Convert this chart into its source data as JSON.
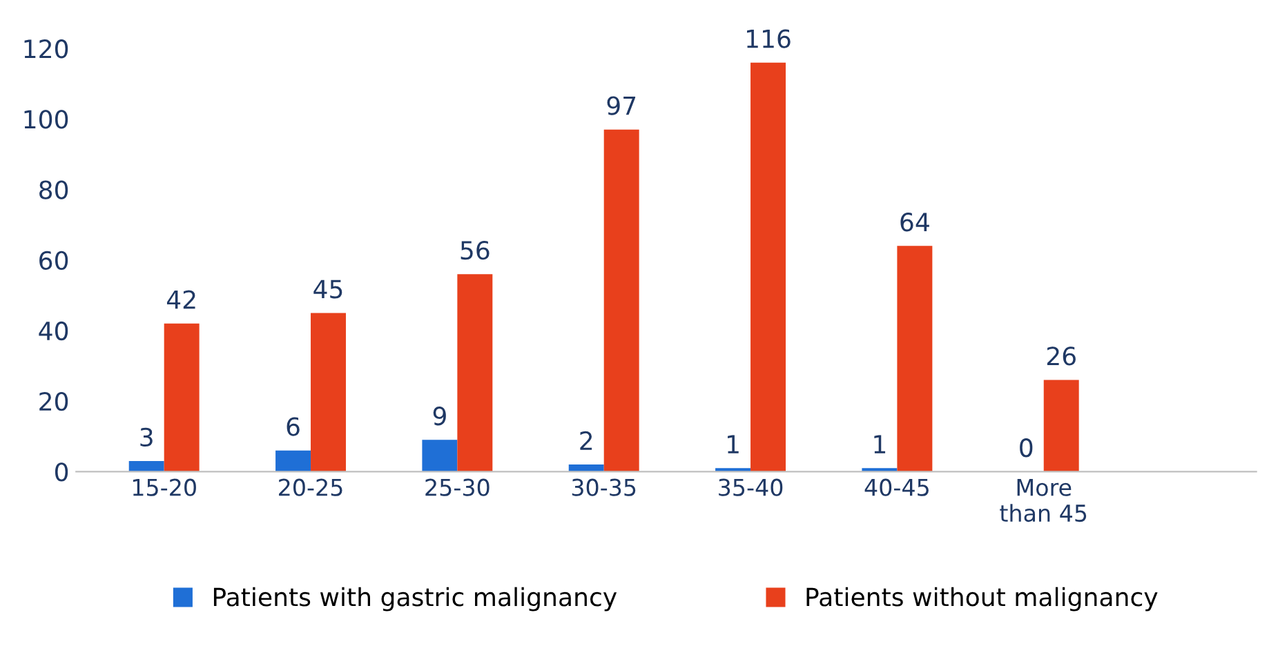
{
  "chart_data": {
    "type": "bar",
    "categories": [
      "15-20",
      "20-25",
      "25-30",
      "30-35",
      "35-40",
      "40-45",
      "More\nthan 45"
    ],
    "series": [
      {
        "name": "Patients with gastric malignancy",
        "color": "#1f6fd6",
        "values": [
          3,
          6,
          9,
          2,
          1,
          1,
          0
        ]
      },
      {
        "name": "Patients without malignancy",
        "color": "#e8401c",
        "values": [
          42,
          45,
          56,
          97,
          116,
          64,
          26
        ]
      }
    ],
    "ylim": [
      0,
      120
    ],
    "yticks": [
      0,
      20,
      40,
      60,
      80,
      100,
      120
    ],
    "data_labels": true,
    "grid": false,
    "legend": "bottom"
  }
}
